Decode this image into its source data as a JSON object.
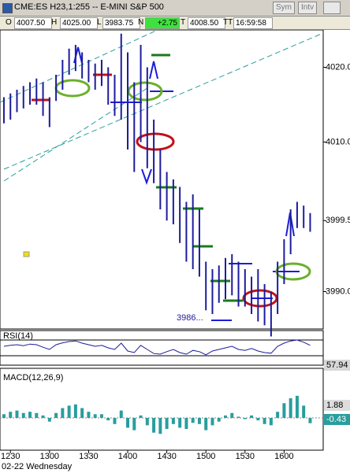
{
  "toolbar": {
    "title": "CME:ES H23,1:255 -- E-MINI S&P 500",
    "buttons": [
      "Sym",
      "Intv"
    ],
    "fields": [
      [
        "O",
        "4007.50"
      ],
      [
        "H",
        "4025.00"
      ],
      [
        "L",
        "3983.75"
      ],
      [
        "N",
        "+2.75"
      ],
      [
        "T",
        "4008.50"
      ],
      [
        "TT",
        "16:59:58"
      ]
    ]
  },
  "chart_data": [
    {
      "type": "range",
      "color": "#1c1c9c",
      "x": [
        1225,
        1230,
        1235,
        1240,
        1245,
        1250,
        1255,
        1300,
        1305,
        1310,
        1315,
        1320,
        1325,
        1330,
        1335,
        1340,
        1345,
        1350,
        1355,
        1400,
        1405,
        1410,
        1415,
        1420,
        1425,
        1430,
        1435,
        1440,
        1445,
        1450,
        1455,
        1500,
        1505,
        1510,
        1515,
        1520,
        1525,
        1530,
        1535,
        1540,
        1545,
        1550,
        1555,
        1600,
        1605,
        1610,
        1615,
        1620
      ],
      "high": [
        4016,
        4016.5,
        4017,
        4017.5,
        4018,
        4018.5,
        4018,
        4016,
        4019,
        4021,
        4022.5,
        4023,
        4022,
        4021,
        4020.5,
        4021,
        4020,
        4019,
        4024.5,
        4022,
        4018,
        4023,
        4020,
        4013,
        4009,
        4006,
        4005,
        4004,
        4002,
        4003,
        4001,
        3994,
        3993,
        3993.5,
        3994.5,
        3995,
        3994,
        3993,
        3992,
        3993,
        3991,
        3990,
        3994,
        3997,
        4001,
        4002,
        4001.5,
        4000.5
      ],
      "low": [
        4012.5,
        4013,
        4014,
        4014.5,
        4015,
        4015,
        4013.5,
        4012,
        4015.5,
        4017,
        4019,
        4019.5,
        4018.5,
        4018,
        4017,
        4017.5,
        4015,
        4013.5,
        4013,
        4009,
        4006,
        4010,
        4006.5,
        4004.5,
        4001,
        3999.5,
        3999,
        3996.5,
        3994,
        3993,
        3992,
        3987.5,
        3987,
        3988.5,
        3989,
        3989.5,
        3988,
        3988,
        3987,
        3986,
        3985.5,
        3984,
        3987,
        3991,
        3995,
        3998.5,
        3998.5,
        3998
      ],
      "ylim": [
        3985,
        4025
      ],
      "yticks": [
        {
          "value": 4020,
          "label": "4020.0"
        },
        {
          "value": 4010,
          "label": "4010.0"
        },
        {
          "value": 3999.5,
          "label": "3999.5"
        },
        {
          "value": 3990,
          "label": "3990.0"
        }
      ],
      "xlim": [
        1222,
        1630
      ],
      "xticks": [
        1230,
        1300,
        1330,
        1400,
        1430,
        1500,
        1530,
        1600
      ],
      "annotations": [
        "3986..."
      ],
      "date_label": "02-22 Wednesday"
    },
    {
      "type": "line",
      "title": "RSI(14)",
      "color": "#1c1c9c",
      "ylim": [
        0,
        100
      ],
      "values": [
        55,
        58,
        60,
        57,
        62,
        60,
        52,
        45,
        60,
        66,
        70,
        72,
        65,
        60,
        55,
        58,
        50,
        45,
        65,
        40,
        35,
        58,
        45,
        32,
        30,
        38,
        45,
        35,
        30,
        42,
        38,
        28,
        40,
        45,
        50,
        55,
        45,
        42,
        48,
        40,
        35,
        33,
        55,
        65,
        72,
        75,
        68,
        57.94
      ]
    },
    {
      "type": "histogram",
      "title": "MACD(12,26,9)",
      "color": "#2a9d9d",
      "ylim": [
        -2.5,
        2.5
      ],
      "macd": 1.88,
      "values": [
        0.3,
        0.5,
        0.6,
        0.4,
        0.5,
        0.4,
        0.2,
        -0.3,
        0.4,
        0.8,
        1.0,
        1.1,
        0.8,
        0.5,
        0.3,
        0.3,
        -0.2,
        -0.5,
        0.6,
        -0.8,
        -1.0,
        0.2,
        -0.6,
        -1.2,
        -1.3,
        -0.9,
        -0.5,
        -0.8,
        -0.9,
        -0.4,
        -0.5,
        -1.0,
        -0.6,
        -0.3,
        0.2,
        0.4,
        0.1,
        -0.1,
        0.2,
        -0.2,
        -0.5,
        -0.6,
        0.5,
        1.2,
        1.6,
        1.8,
        1.0,
        -0.43
      ]
    }
  ]
}
